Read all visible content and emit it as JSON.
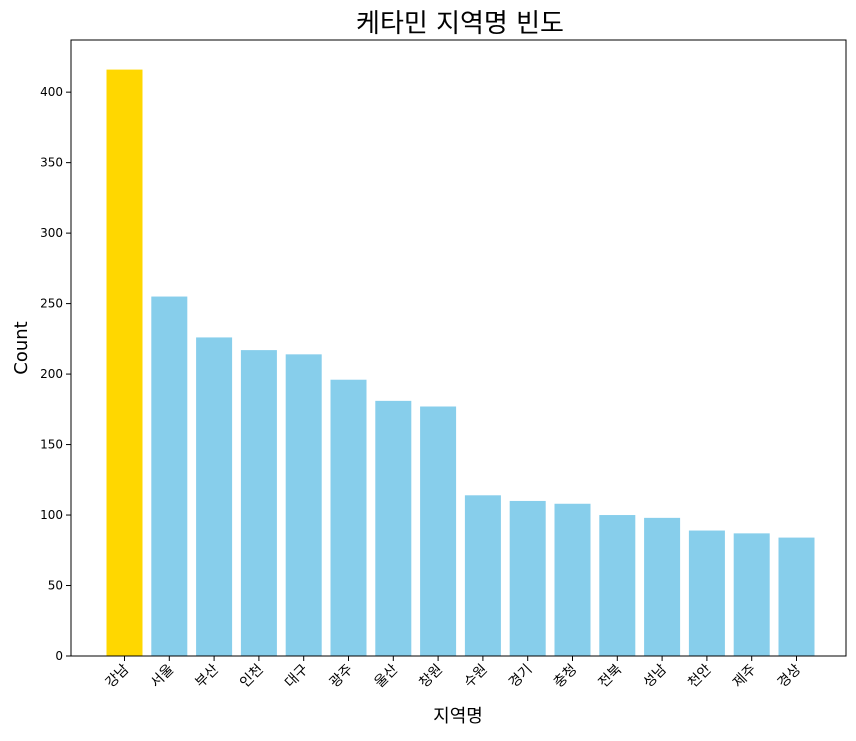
{
  "chart_data": {
    "type": "bar",
    "title": "케타민 지역명 빈도",
    "xlabel": "지역명",
    "ylabel": "Count",
    "categories": [
      "강남",
      "서울",
      "부산",
      "인천",
      "대구",
      "광주",
      "울산",
      "창원",
      "수원",
      "경기",
      "충청",
      "전북",
      "성남",
      "천안",
      "제주",
      "경상"
    ],
    "values": [
      416,
      255,
      226,
      217,
      214,
      196,
      181,
      177,
      114,
      110,
      108,
      100,
      98,
      89,
      87,
      84
    ],
    "bar_colors": [
      "#FFD700",
      "#87CEEB",
      "#87CEEB",
      "#87CEEB",
      "#87CEEB",
      "#87CEEB",
      "#87CEEB",
      "#87CEEB",
      "#87CEEB",
      "#87CEEB",
      "#87CEEB",
      "#87CEEB",
      "#87CEEB",
      "#87CEEB",
      "#87CEEB",
      "#87CEEB"
    ],
    "yticks": [
      0,
      50,
      100,
      150,
      200,
      250,
      300,
      350,
      400
    ],
    "ylim": [
      0,
      437
    ],
    "grid": false,
    "legend": "none",
    "xtick_rotation": "45 degrees, right-aligned"
  }
}
